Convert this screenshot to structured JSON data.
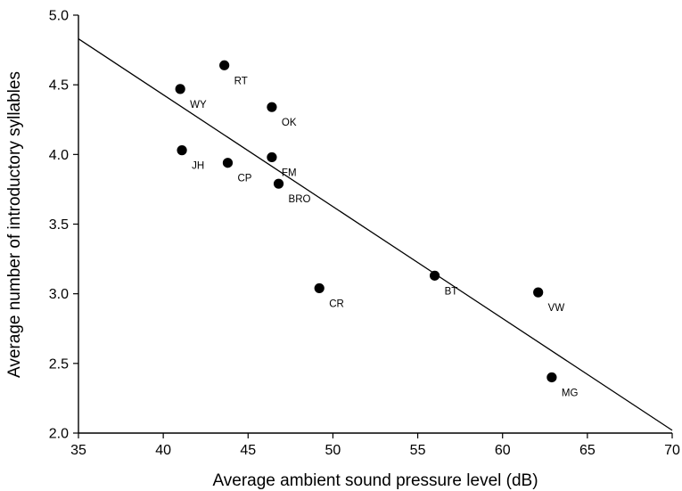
{
  "chart_data": {
    "type": "scatter",
    "xlabel": "Average ambient sound pressure level (dB)",
    "ylabel": "Average number of introductory syllables",
    "xlim": [
      35,
      70
    ],
    "ylim": [
      2.0,
      5.0
    ],
    "x_ticks": [
      35,
      40,
      45,
      50,
      55,
      60,
      65,
      70
    ],
    "y_ticks": [
      "2.0",
      "2.5",
      "3.0",
      "3.5",
      "4.0",
      "4.5",
      "5.0"
    ],
    "grid": false,
    "legend": "none",
    "points": [
      {
        "label": "RT",
        "x": 43.6,
        "y": 4.64
      },
      {
        "label": "WY",
        "x": 41.0,
        "y": 4.47
      },
      {
        "label": "OK",
        "x": 46.4,
        "y": 4.34
      },
      {
        "label": "JH",
        "x": 41.1,
        "y": 4.03
      },
      {
        "label": "CP",
        "x": 43.8,
        "y": 3.94
      },
      {
        "label": "FM",
        "x": 46.4,
        "y": 3.98
      },
      {
        "label": "BRO",
        "x": 46.8,
        "y": 3.79
      },
      {
        "label": "CR",
        "x": 49.2,
        "y": 3.04
      },
      {
        "label": "BT",
        "x": 56.0,
        "y": 3.13
      },
      {
        "label": "VW",
        "x": 62.1,
        "y": 3.01
      },
      {
        "label": "MG",
        "x": 62.9,
        "y": 2.4
      }
    ],
    "trendline": {
      "x": [
        35,
        70
      ],
      "y": [
        4.83,
        2.02
      ]
    },
    "color": "#000000"
  }
}
